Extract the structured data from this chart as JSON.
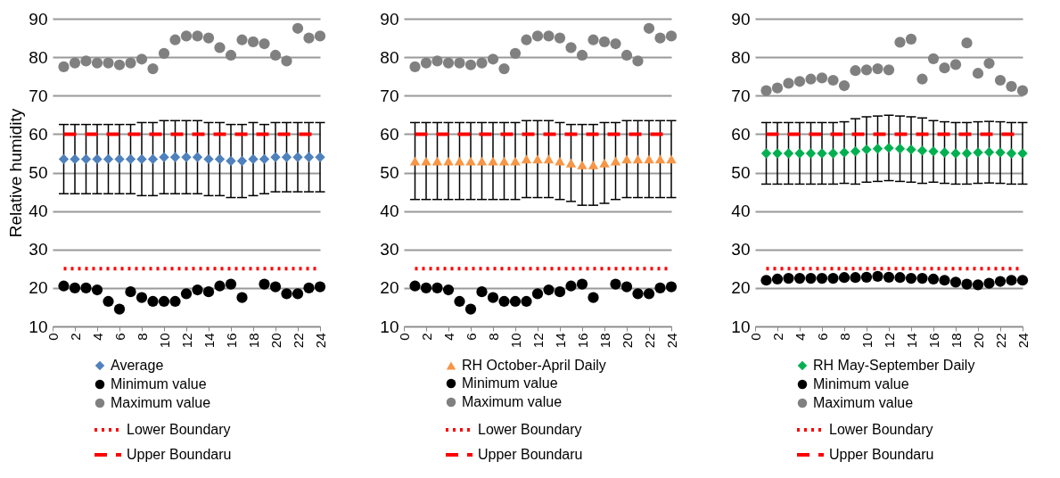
{
  "chart_data": [
    {
      "type": "scatter",
      "ylabel": "Relative humidity",
      "x": [
        1,
        2,
        3,
        4,
        5,
        6,
        7,
        8,
        9,
        10,
        11,
        12,
        13,
        14,
        15,
        16,
        17,
        18,
        19,
        20,
        21,
        22,
        23,
        24
      ],
      "xlim": [
        0,
        24
      ],
      "xticks": [
        0,
        2,
        4,
        6,
        8,
        10,
        12,
        14,
        16,
        18,
        20,
        22,
        24
      ],
      "ylim": [
        10,
        90
      ],
      "yticks": [
        10,
        20,
        30,
        40,
        50,
        60,
        70,
        80,
        90
      ],
      "grid": "y",
      "legend": "bottom",
      "series": [
        {
          "name": "Average",
          "marker": "diamond",
          "color": "#4f81bd",
          "values": [
            53.5,
            53.5,
            53.5,
            53.5,
            53.5,
            53.5,
            53.5,
            53.5,
            53.5,
            54,
            54,
            54,
            54,
            53.5,
            53.5,
            53,
            53,
            53.5,
            53.5,
            54,
            54,
            54,
            54,
            54
          ],
          "errors": [
            9,
            9,
            9,
            9,
            9,
            9,
            9,
            9.5,
            9.5,
            9.5,
            9.5,
            9.5,
            9.5,
            9.5,
            9.5,
            9.5,
            9.5,
            9.5,
            9,
            9,
            9,
            9,
            9,
            9
          ]
        },
        {
          "name": "Minimum value",
          "type": "scatter",
          "marker": "circle",
          "color": "#000000",
          "values": [
            20.5,
            20,
            20,
            19.5,
            16.5,
            14.5,
            19,
            17.5,
            16.5,
            16.5,
            16.5,
            18.5,
            19.5,
            19,
            20.5,
            21,
            17.5,
            null,
            21,
            20.3,
            18.5,
            18.5,
            20,
            20.3
          ]
        },
        {
          "name": "Maximum value",
          "type": "scatter",
          "marker": "circle",
          "color": "#808080",
          "values": [
            77.5,
            78.5,
            79,
            78.5,
            78.5,
            78,
            78.5,
            79.5,
            77,
            81,
            84.5,
            85.5,
            85.5,
            85,
            82.5,
            80.5,
            84.5,
            84,
            83.5,
            80.5,
            79,
            87.5,
            85,
            85.5
          ]
        },
        {
          "name": "Lower Boundary",
          "type": "line",
          "line_style": "dotted",
          "color": "#ff0000",
          "values": [
            25,
            25,
            25,
            25,
            25,
            25,
            25,
            25,
            25,
            25,
            25,
            25,
            25,
            25,
            25,
            25,
            25,
            25,
            25,
            25,
            25,
            25,
            25,
            25
          ]
        },
        {
          "name": "Upper Boundaru",
          "type": "line",
          "line_style": "dashed",
          "color": "#ff0000",
          "values": [
            60,
            60,
            60,
            60,
            60,
            60,
            60,
            60,
            60,
            60,
            60,
            60,
            60,
            60,
            60,
            60,
            60,
            60,
            60,
            60,
            60,
            60,
            60,
            60
          ]
        }
      ]
    },
    {
      "type": "scatter",
      "x": [
        1,
        2,
        3,
        4,
        5,
        6,
        7,
        8,
        9,
        10,
        11,
        12,
        13,
        14,
        15,
        16,
        17,
        18,
        19,
        20,
        21,
        22,
        23,
        24
      ],
      "xlim": [
        0,
        24
      ],
      "xticks": [
        0,
        2,
        4,
        6,
        8,
        10,
        12,
        14,
        16,
        18,
        20,
        22,
        24
      ],
      "ylim": [
        10,
        90
      ],
      "yticks": [
        10,
        20,
        30,
        40,
        50,
        60,
        70,
        80,
        90
      ],
      "grid": "y",
      "legend": "bottom",
      "series": [
        {
          "name": "RH October-April Daily",
          "marker": "triangle",
          "color": "#f79646",
          "values": [
            53,
            53,
            53,
            53,
            53,
            53,
            53,
            53,
            53,
            53,
            53.5,
            53.5,
            53.5,
            53,
            52.5,
            52,
            52,
            52.5,
            53,
            53.5,
            53.5,
            53.5,
            53.5,
            53.5
          ],
          "errors": [
            10,
            10,
            10,
            10,
            10,
            10,
            10,
            10,
            10,
            10,
            10,
            10,
            10,
            10,
            10,
            10.5,
            10.5,
            10.5,
            10,
            10,
            10,
            10,
            10,
            10
          ]
        },
        {
          "name": "Minimum value",
          "type": "scatter",
          "marker": "circle",
          "color": "#000000",
          "values": [
            20.5,
            20,
            20,
            19.5,
            16.5,
            14.5,
            19,
            17.5,
            16.5,
            16.5,
            16.5,
            18.5,
            19.5,
            19,
            20.5,
            21,
            17.5,
            null,
            21,
            20.3,
            18.5,
            18.5,
            20,
            20.3
          ]
        },
        {
          "name": "Maximum value",
          "type": "scatter",
          "marker": "circle",
          "color": "#808080",
          "values": [
            77.5,
            78.5,
            79,
            78.5,
            78.5,
            78,
            78.5,
            79.5,
            77,
            81,
            84.5,
            85.5,
            85.5,
            85,
            82.5,
            80.5,
            84.5,
            84,
            83.5,
            80.5,
            79,
            87.5,
            85,
            85.5
          ]
        },
        {
          "name": "Lower Boundary",
          "type": "line",
          "line_style": "dotted",
          "color": "#ff0000",
          "values": [
            25,
            25,
            25,
            25,
            25,
            25,
            25,
            25,
            25,
            25,
            25,
            25,
            25,
            25,
            25,
            25,
            25,
            25,
            25,
            25,
            25,
            25,
            25,
            25
          ]
        },
        {
          "name": "Upper Boundaru",
          "type": "line",
          "line_style": "dashed",
          "color": "#ff0000",
          "values": [
            60,
            60,
            60,
            60,
            60,
            60,
            60,
            60,
            60,
            60,
            60,
            60,
            60,
            60,
            60,
            60,
            60,
            60,
            60,
            60,
            60,
            60,
            60,
            60
          ]
        }
      ]
    },
    {
      "type": "scatter",
      "x": [
        1,
        2,
        3,
        4,
        5,
        6,
        7,
        8,
        9,
        10,
        11,
        12,
        13,
        14,
        15,
        16,
        17,
        18,
        19,
        20,
        21,
        22,
        23,
        24
      ],
      "xlim": [
        0,
        24
      ],
      "xticks": [
        0,
        2,
        4,
        6,
        8,
        10,
        12,
        14,
        16,
        18,
        20,
        22,
        24
      ],
      "ylim": [
        10,
        90
      ],
      "yticks": [
        10,
        20,
        30,
        40,
        50,
        60,
        70,
        80,
        90
      ],
      "grid": "y",
      "legend": "bottom",
      "series": [
        {
          "name": "RH May-September Daily",
          "marker": "diamond",
          "color": "#00b050",
          "values": [
            55,
            55,
            55,
            55,
            55,
            55,
            55,
            55.2,
            55.5,
            56,
            56.2,
            56.4,
            56.2,
            56,
            55.7,
            55.5,
            55.2,
            55,
            55,
            55.2,
            55.3,
            55.2,
            55,
            55
          ],
          "errors": [
            8,
            8,
            8,
            8,
            8,
            8,
            8,
            8,
            8.5,
            8.5,
            8.5,
            8.5,
            8.5,
            8.5,
            8.5,
            8,
            8,
            8,
            8,
            8,
            8,
            8,
            8,
            8
          ]
        },
        {
          "name": "Minimum value",
          "type": "scatter",
          "marker": "circle",
          "color": "#000000",
          "values": [
            22,
            22.3,
            22.5,
            22.5,
            22.5,
            22.5,
            22.5,
            22.7,
            22.7,
            22.8,
            23,
            22.8,
            22.7,
            22.5,
            22.5,
            22.3,
            22,
            21.5,
            21,
            20.8,
            21.2,
            21.7,
            22,
            22
          ]
        },
        {
          "name": "Maximum value",
          "type": "scatter",
          "marker": "circle",
          "color": "#808080",
          "values": [
            71.3,
            72,
            73.2,
            73.7,
            74.3,
            74.6,
            74,
            72.6,
            76.5,
            76.7,
            77,
            76.7,
            83.9,
            84.7,
            74.3,
            79.6,
            77.2,
            78.1,
            83.7,
            75.8,
            78.4,
            74,
            72.4,
            71.3
          ]
        },
        {
          "name": "Lower Boundary",
          "type": "line",
          "line_style": "dotted",
          "color": "#ff0000",
          "values": [
            25,
            25,
            25,
            25,
            25,
            25,
            25,
            25,
            25,
            25,
            25,
            25,
            25,
            25,
            25,
            25,
            25,
            25,
            25,
            25,
            25,
            25,
            25,
            25
          ]
        },
        {
          "name": "Upper Boundaru",
          "type": "line",
          "line_style": "dashed",
          "color": "#ff0000",
          "values": [
            60,
            60,
            60,
            60,
            60,
            60,
            60,
            60,
            60,
            60,
            60,
            60,
            60,
            60,
            60,
            60,
            60,
            60,
            60,
            60,
            60,
            60,
            60,
            60
          ]
        }
      ]
    }
  ]
}
